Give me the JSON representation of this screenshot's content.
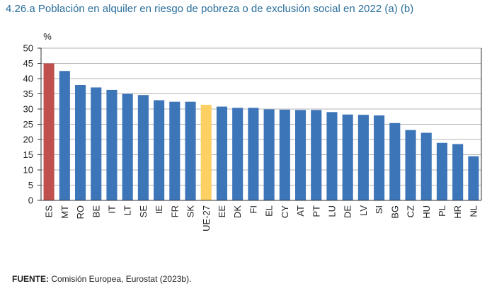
{
  "chart_data": {
    "type": "bar",
    "title": "4.26.a  Población en alquiler en riesgo de pobreza o de exclusión social en 2022 (a) (b)",
    "ylabel": "%",
    "ylim": [
      0,
      50
    ],
    "yticks": [
      0,
      5,
      10,
      15,
      20,
      25,
      30,
      35,
      40,
      45,
      50
    ],
    "grid": true,
    "categories": [
      "ES",
      "MT",
      "RO",
      "BE",
      "IT",
      "LT",
      "SE",
      "IE",
      "FR",
      "SK",
      "UE-27",
      "EE",
      "DK",
      "FI",
      "EL",
      "CY",
      "AT",
      "PT",
      "LU",
      "DE",
      "LV",
      "SI",
      "BG",
      "CZ",
      "HU",
      "PL",
      "HR",
      "NL"
    ],
    "values": [
      45.0,
      42.5,
      37.9,
      37.1,
      36.3,
      35.0,
      34.6,
      32.9,
      32.4,
      32.4,
      31.4,
      30.8,
      30.4,
      30.4,
      29.9,
      29.8,
      29.7,
      29.7,
      29.0,
      28.2,
      28.1,
      27.9,
      25.4,
      23.1,
      22.2,
      18.9,
      18.5,
      14.5
    ],
    "colors": {
      "default": "#3d75b9",
      "highlight_es": "#c0504d",
      "highlight_eu": "#fcd062",
      "grid": "#9a9a9a",
      "axis": "#333333"
    }
  },
  "source": {
    "label": "FUENTE:",
    "text": " Comisión Europea, Eurostat (2023b)."
  }
}
